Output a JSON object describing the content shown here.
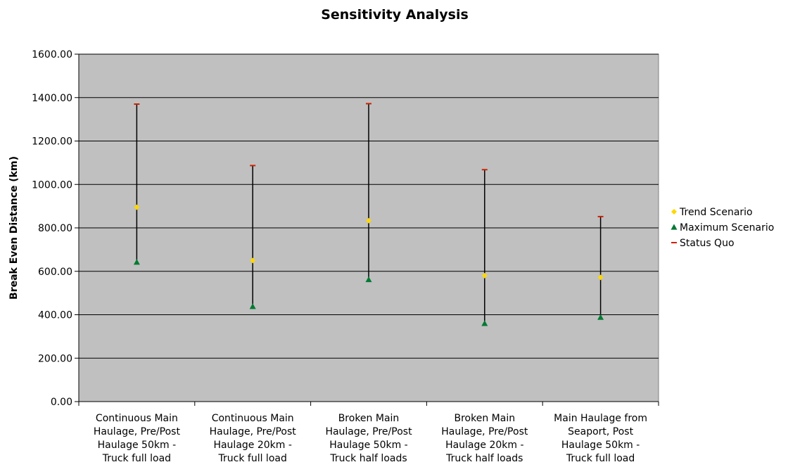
{
  "chart_data": {
    "type": "scatter",
    "title": "Sensitivity Analysis",
    "xlabel": "",
    "ylabel": "Break Even Distance (km)",
    "ylim": [
      0,
      1600
    ],
    "yticks": [
      "0.00",
      "200.00",
      "400.00",
      "600.00",
      "800.00",
      "1000.00",
      "1200.00",
      "1400.00",
      "1600.00"
    ],
    "categories": [
      [
        "Continuous Main",
        "Haulage, Pre/Post",
        "Haulage 50km -",
        "Truck full load"
      ],
      [
        "Continuous Main",
        "Haulage, Pre/Post",
        "Haulage 20km -",
        "Truck full load"
      ],
      [
        "Broken Main",
        "Haulage, Pre/Post",
        "Haulage 50km -",
        "Truck half loads"
      ],
      [
        "Broken Main",
        "Haulage, Pre/Post",
        "Haulage 20km -",
        "Truck half loads"
      ],
      [
        "Main Haulage from",
        "Seaport, Post",
        "Haulage 50km -",
        "Truck full load"
      ]
    ],
    "series": [
      {
        "name": "Trend Scenario",
        "marker": "diamond",
        "color": "#FFD700",
        "values": [
          895,
          650,
          833,
          580,
          572
        ]
      },
      {
        "name": "Maximum Scenario",
        "marker": "triangle",
        "color": "#007A33",
        "values": [
          642,
          438,
          562,
          360,
          388
        ]
      },
      {
        "name": "Status Quo",
        "marker": "dash",
        "color": "#CC2200",
        "values": [
          1370,
          1087,
          1372,
          1068,
          852
        ]
      }
    ],
    "range_lines": {
      "color": "#000000"
    },
    "plot_background": "#C0C0C0",
    "grid": true,
    "legend_position": "right"
  }
}
